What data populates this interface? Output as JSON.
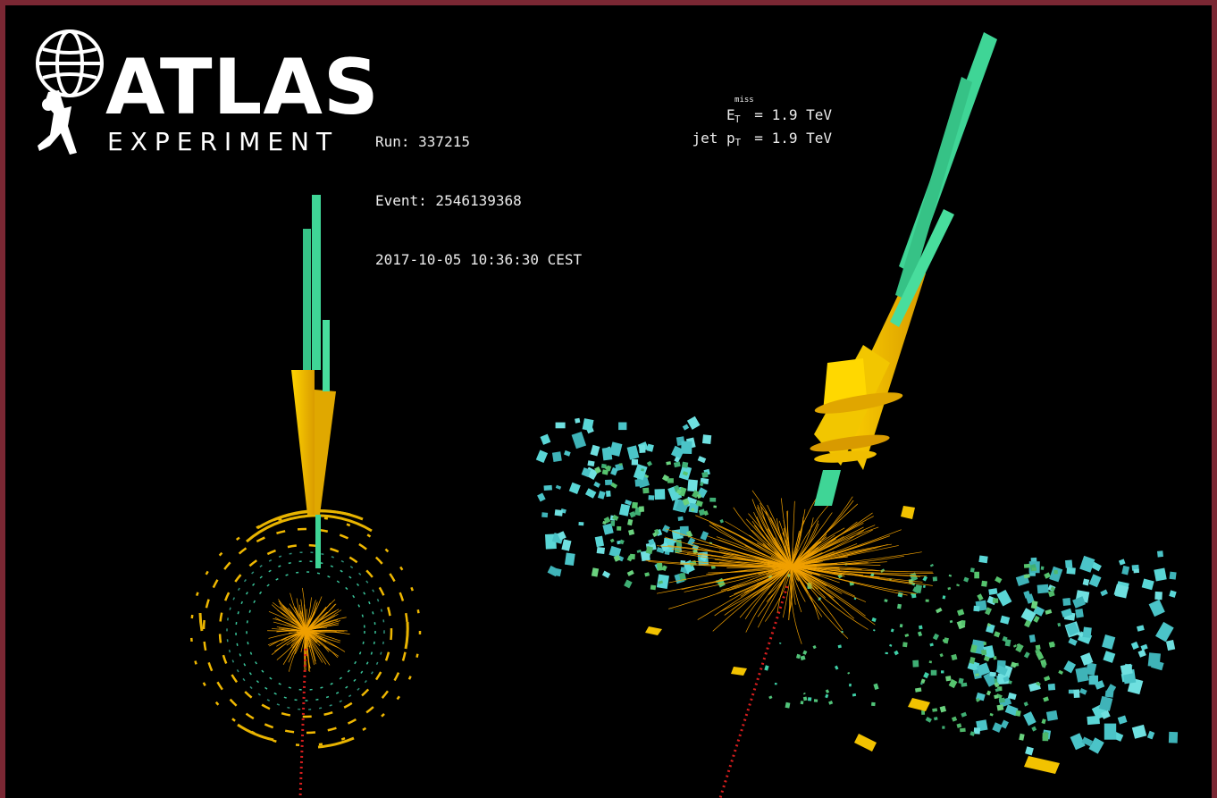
{
  "logo": {
    "title": "ATLAS",
    "subtitle": "EXPERIMENT",
    "icon": "atlas-globe-figure-icon"
  },
  "event": {
    "run": "Run: 337215",
    "event": "Event: 2546139368",
    "datetime": "2017-10-05 10:36:30 CEST"
  },
  "energy": {
    "met_symbol": "E",
    "met_superscript": "miss",
    "met_subscript": "T",
    "met_value": " = 1.9 TeV",
    "jet_prefix": "jet p",
    "jet_subscript": "T",
    "jet_value": " = 1.9 TeV"
  },
  "colors": {
    "frame": "#7a2733",
    "background": "#000000",
    "jet_green": "#3ecf8e",
    "calorimeter_yellow": "#f2c200",
    "tracks_orange": "#f0a000",
    "muon_cyan": "#5ad6d6",
    "missing_energy_red": "#d81e1e"
  }
}
